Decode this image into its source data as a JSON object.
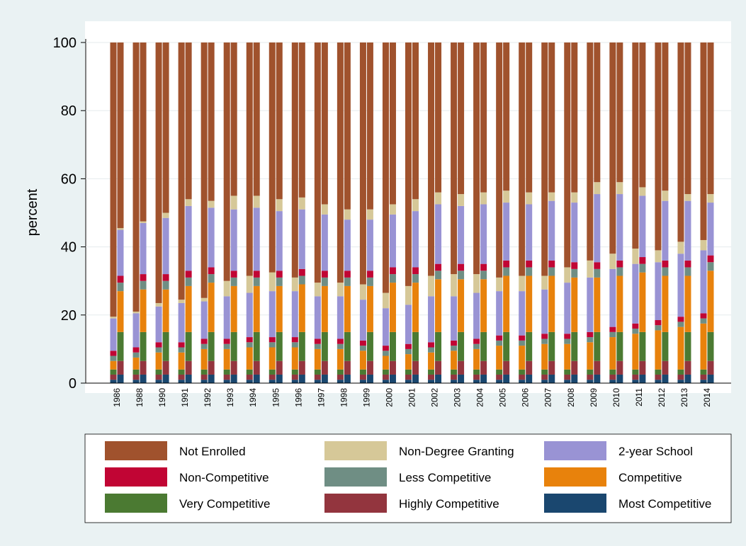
{
  "chart_data": {
    "type": "stacked-bar-pairs",
    "y_label": "percent",
    "categories": [
      "1986",
      "1988",
      "1990",
      "1991",
      "1992",
      "1993",
      "1994",
      "1995",
      "1996",
      "1997",
      "1998",
      "1999",
      "2000",
      "2001",
      "2002",
      "2003",
      "2004",
      "2005",
      "2006",
      "2007",
      "2008",
      "2009",
      "2010",
      "2011",
      "2012",
      "2013",
      "2014"
    ],
    "ylim": [
      0,
      100
    ],
    "yticks": [
      0,
      20,
      40,
      60,
      80,
      100
    ],
    "grid": true,
    "series": [
      {
        "name": "Not Enrolled",
        "color": "#a0522d",
        "values": [
          [
            80.5,
            54.5
          ],
          [
            79,
            52.5
          ],
          [
            76.5,
            50
          ],
          [
            75.5,
            46
          ],
          [
            75,
            46.5
          ],
          [
            70,
            45
          ],
          [
            68.5,
            45
          ],
          [
            67.5,
            46
          ],
          [
            69,
            45.5
          ],
          [
            70.5,
            47.5
          ],
          [
            70.5,
            49
          ],
          [
            71,
            49
          ],
          [
            73.5,
            47.5
          ],
          [
            71.5,
            46
          ],
          [
            68.5,
            44
          ],
          [
            68,
            44.5
          ],
          [
            68,
            44
          ],
          [
            69,
            43.5
          ],
          [
            68.5,
            44
          ],
          [
            68.5,
            44
          ],
          [
            66,
            44
          ],
          [
            64,
            41
          ],
          [
            62,
            41
          ],
          [
            60.5,
            42.5
          ],
          [
            61,
            43.5
          ],
          [
            58.5,
            44.5
          ],
          [
            58,
            44.5
          ]
        ]
      },
      {
        "name": "Non-Degree Granting",
        "color": "#d6c898",
        "values": [
          [
            0.5,
            0.5
          ],
          [
            0.5,
            0.5
          ],
          [
            1,
            1.5
          ],
          [
            1,
            2
          ],
          [
            1,
            2
          ],
          [
            4.5,
            4
          ],
          [
            5,
            3.5
          ],
          [
            5.5,
            3.5
          ],
          [
            4,
            3.5
          ],
          [
            4,
            3
          ],
          [
            4,
            3
          ],
          [
            4.5,
            3
          ],
          [
            4.5,
            3
          ],
          [
            5.5,
            3.5
          ],
          [
            6,
            3.5
          ],
          [
            6.5,
            3.5
          ],
          [
            5.5,
            3.5
          ],
          [
            4,
            3.5
          ],
          [
            4.5,
            3.5
          ],
          [
            4,
            2.5
          ],
          [
            4.5,
            3
          ],
          [
            5,
            3.5
          ],
          [
            4.5,
            3.5
          ],
          [
            4.5,
            2.5
          ],
          [
            3.5,
            3
          ],
          [
            3.5,
            2
          ],
          [
            3,
            2.5
          ]
        ]
      },
      {
        "name": "2-year School",
        "color": "#9993d4",
        "values": [
          [
            9.5,
            13.5
          ],
          [
            10,
            15
          ],
          [
            10.5,
            16.5
          ],
          [
            11.5,
            19
          ],
          [
            11,
            17.5
          ],
          [
            12.5,
            18
          ],
          [
            13,
            18.5
          ],
          [
            13.5,
            17.5
          ],
          [
            13.5,
            17.5
          ],
          [
            12.5,
            16.5
          ],
          [
            12.5,
            15
          ],
          [
            12,
            15
          ],
          [
            11,
            15.5
          ],
          [
            11.5,
            16.5
          ],
          [
            13.5,
            17.5
          ],
          [
            13,
            17
          ],
          [
            13.5,
            17.5
          ],
          [
            13,
            17
          ],
          [
            13,
            16.5
          ],
          [
            13,
            17.5
          ],
          [
            15,
            17.5
          ],
          [
            16,
            20
          ],
          [
            17,
            19.5
          ],
          [
            17.5,
            18
          ],
          [
            17,
            17.5
          ],
          [
            18.5,
            17.5
          ],
          [
            18.5,
            15.5
          ]
        ]
      },
      {
        "name": "Non-Competitive",
        "color": "#c10534",
        "values": [
          [
            1.5,
            2
          ],
          [
            1.5,
            2
          ],
          [
            1.5,
            2
          ],
          [
            1.5,
            2
          ],
          [
            1.5,
            2
          ],
          [
            1.5,
            2
          ],
          [
            1.5,
            2
          ],
          [
            1.5,
            2
          ],
          [
            1.5,
            2
          ],
          [
            1.5,
            2
          ],
          [
            1.5,
            2
          ],
          [
            1.5,
            2
          ],
          [
            1.5,
            2
          ],
          [
            1.5,
            2
          ],
          [
            1.5,
            2
          ],
          [
            1.5,
            2
          ],
          [
            1.5,
            2
          ],
          [
            1.5,
            2
          ],
          [
            1.5,
            2
          ],
          [
            1.5,
            2
          ],
          [
            1.5,
            2
          ],
          [
            1.5,
            2
          ],
          [
            1.5,
            2
          ],
          [
            1.5,
            2
          ],
          [
            1.5,
            2
          ],
          [
            1.5,
            2
          ],
          [
            1.5,
            2
          ]
        ]
      },
      {
        "name": "Less Competitive",
        "color": "#6f8e84",
        "values": [
          [
            1.5,
            2.5
          ],
          [
            1.5,
            2.5
          ],
          [
            1.5,
            2.5
          ],
          [
            1.5,
            2.5
          ],
          [
            1.5,
            2.5
          ],
          [
            1.5,
            2.5
          ],
          [
            1.5,
            2.5
          ],
          [
            1.5,
            2.5
          ],
          [
            1.5,
            2.5
          ],
          [
            1.5,
            2.5
          ],
          [
            1.5,
            2.5
          ],
          [
            1.5,
            2.5
          ],
          [
            1.5,
            2.5
          ],
          [
            1.5,
            2.5
          ],
          [
            1.5,
            2.5
          ],
          [
            1.5,
            2.5
          ],
          [
            1.5,
            2.5
          ],
          [
            1.5,
            2.5
          ],
          [
            1.5,
            2.5
          ],
          [
            1.5,
            2.5
          ],
          [
            1.5,
            2.5
          ],
          [
            1.5,
            2.5
          ],
          [
            1.5,
            2.5
          ],
          [
            1.5,
            2.5
          ],
          [
            1.5,
            2.5
          ],
          [
            1.5,
            2.5
          ],
          [
            1.5,
            2.5
          ]
        ]
      },
      {
        "name": "Competitive",
        "color": "#e8820c",
        "values": [
          [
            2.5,
            12
          ],
          [
            3.5,
            12.5
          ],
          [
            5,
            12.5
          ],
          [
            5,
            13.5
          ],
          [
            6,
            14.5
          ],
          [
            6,
            13.5
          ],
          [
            6.5,
            13.5
          ],
          [
            6.5,
            13.5
          ],
          [
            6.5,
            14
          ],
          [
            6,
            13.5
          ],
          [
            6,
            13.5
          ],
          [
            5.5,
            13.5
          ],
          [
            4,
            14.5
          ],
          [
            4.5,
            14.5
          ],
          [
            5,
            15.5
          ],
          [
            5.5,
            15.5
          ],
          [
            6,
            15.5
          ],
          [
            7,
            16.5
          ],
          [
            7,
            16.5
          ],
          [
            7.5,
            16.5
          ],
          [
            7.5,
            16
          ],
          [
            8,
            16
          ],
          [
            9.5,
            16.5
          ],
          [
            10.5,
            17.5
          ],
          [
            11.5,
            16.5
          ],
          [
            12.5,
            16.5
          ],
          [
            13.5,
            18
          ]
        ]
      },
      {
        "name": "Very Competitive",
        "color": "#4b7a32",
        "values": [
          [
            1.5,
            8.5
          ],
          [
            1.5,
            8.5
          ],
          [
            1.5,
            8.5
          ],
          [
            1.5,
            8.5
          ],
          [
            1.5,
            8.5
          ],
          [
            1.5,
            8.5
          ],
          [
            1.5,
            8.5
          ],
          [
            1.5,
            8.5
          ],
          [
            1.5,
            8.5
          ],
          [
            1.5,
            8.5
          ],
          [
            1.5,
            8.5
          ],
          [
            1.5,
            8.5
          ],
          [
            1.5,
            8.5
          ],
          [
            1.5,
            8.5
          ],
          [
            1.5,
            8.5
          ],
          [
            1.5,
            8.5
          ],
          [
            1.5,
            8.5
          ],
          [
            1.5,
            8.5
          ],
          [
            1.5,
            8.5
          ],
          [
            1.5,
            8.5
          ],
          [
            1.5,
            8.5
          ],
          [
            1.5,
            8.5
          ],
          [
            1.5,
            8.5
          ],
          [
            1.5,
            8.5
          ],
          [
            1.5,
            8.5
          ],
          [
            1.5,
            8.5
          ],
          [
            1.5,
            8.5
          ]
        ]
      },
      {
        "name": "Highly Competitive",
        "color": "#93353e",
        "values": [
          [
            1.5,
            4
          ],
          [
            1.5,
            4
          ],
          [
            1.5,
            4
          ],
          [
            1.5,
            4
          ],
          [
            1.5,
            4
          ],
          [
            1.5,
            4
          ],
          [
            1.5,
            4
          ],
          [
            1.5,
            4
          ],
          [
            1.5,
            4
          ],
          [
            1.5,
            4
          ],
          [
            1.5,
            4
          ],
          [
            1.5,
            4
          ],
          [
            1.5,
            4
          ],
          [
            1.5,
            4
          ],
          [
            1.5,
            4
          ],
          [
            1.5,
            4
          ],
          [
            1.5,
            4
          ],
          [
            1.5,
            4
          ],
          [
            1.5,
            4
          ],
          [
            1.5,
            4
          ],
          [
            1.5,
            4
          ],
          [
            1.5,
            4
          ],
          [
            1.5,
            4
          ],
          [
            1.5,
            4
          ],
          [
            1.5,
            4
          ],
          [
            1.5,
            4
          ],
          [
            1.5,
            4
          ]
        ]
      },
      {
        "name": "Most Competitive",
        "color": "#1a476f",
        "values": [
          [
            1,
            2.5
          ],
          [
            1,
            2.5
          ],
          [
            1,
            2.5
          ],
          [
            1,
            2.5
          ],
          [
            1,
            2.5
          ],
          [
            1,
            2.5
          ],
          [
            1,
            2.5
          ],
          [
            1,
            2.5
          ],
          [
            1,
            2.5
          ],
          [
            1,
            2.5
          ],
          [
            1,
            2.5
          ],
          [
            1,
            2.5
          ],
          [
            1,
            2.5
          ],
          [
            1,
            2.5
          ],
          [
            1,
            2.5
          ],
          [
            1,
            2.5
          ],
          [
            1,
            2.5
          ],
          [
            1,
            2.5
          ],
          [
            1,
            2.5
          ],
          [
            1,
            2.5
          ],
          [
            1,
            2.5
          ],
          [
            1,
            2.5
          ],
          [
            1,
            2.5
          ],
          [
            1,
            2.5
          ],
          [
            1,
            2.5
          ],
          [
            1,
            2.5
          ],
          [
            1,
            2.5
          ]
        ]
      }
    ]
  }
}
